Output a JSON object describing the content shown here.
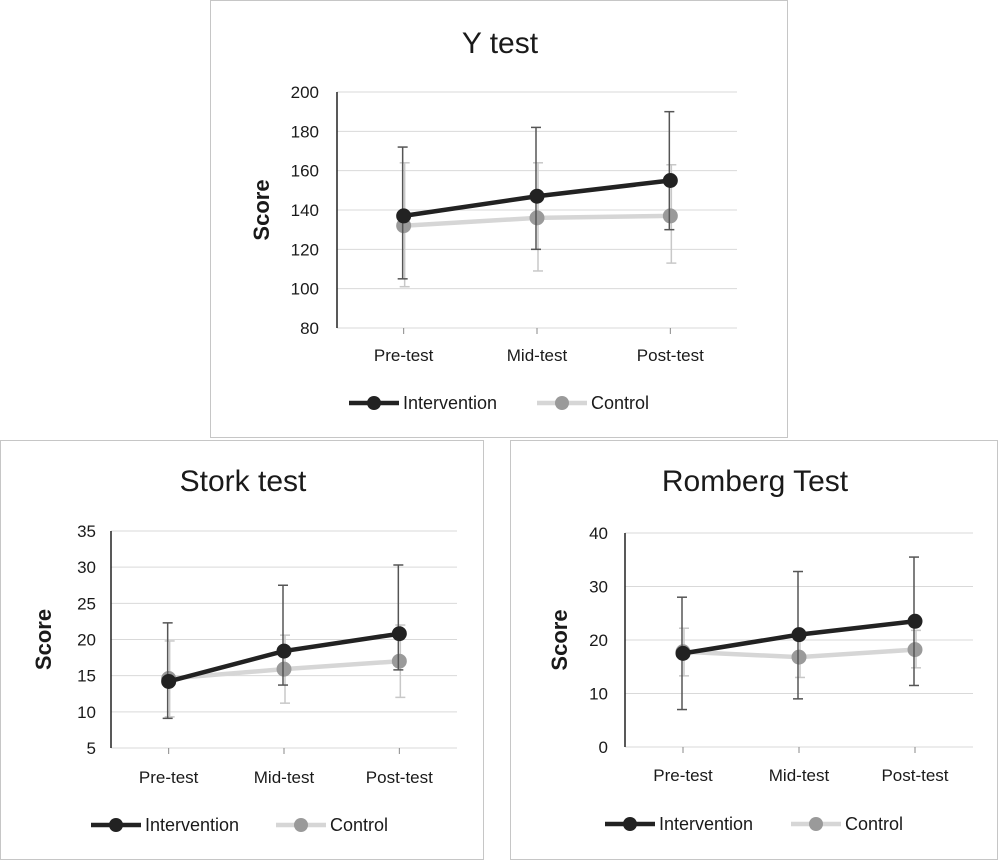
{
  "colors": {
    "intervention": "#222222",
    "control": "#d6d6d6",
    "control_marker": "#9a9a9a",
    "grid": "#d9d9d9",
    "axis": "#222222",
    "error_intervention": "#555555",
    "error_control": "#c8c8c8"
  },
  "chart_data": [
    {
      "type": "line",
      "title": "Y test",
      "ylabel": "Score",
      "xlabel": "",
      "categories": [
        "Pre-test",
        "Mid-test",
        "Post-test"
      ],
      "ylim": [
        80,
        200
      ],
      "yticks": [
        "80",
        "100",
        "120",
        "140",
        "160",
        "180",
        "200"
      ],
      "grid": true,
      "legend": "bottom",
      "series": [
        {
          "name": "Intervention",
          "values": [
            137,
            147,
            155
          ],
          "err_low": [
            105,
            120,
            130
          ],
          "err_high": [
            172,
            182,
            190
          ]
        },
        {
          "name": "Control",
          "values": [
            132,
            136,
            137
          ],
          "err_low": [
            101,
            109,
            113
          ],
          "err_high": [
            164,
            164,
            163
          ]
        }
      ]
    },
    {
      "type": "line",
      "title": "Stork test",
      "ylabel": "Score",
      "xlabel": "",
      "categories": [
        "Pre-test",
        "Mid-test",
        "Post-test"
      ],
      "ylim": [
        5,
        35
      ],
      "yticks": [
        "5",
        "10",
        "15",
        "20",
        "25",
        "30",
        "35"
      ],
      "grid": true,
      "legend": "bottom",
      "series": [
        {
          "name": "Intervention",
          "values": [
            14.2,
            18.4,
            20.8
          ],
          "err_low": [
            9.1,
            13.7,
            15.8
          ],
          "err_high": [
            22.3,
            27.5,
            30.3
          ]
        },
        {
          "name": "Control",
          "values": [
            14.6,
            15.9,
            17.0
          ],
          "err_low": [
            9.3,
            11.2,
            12.0
          ],
          "err_high": [
            19.8,
            20.6,
            22.0
          ]
        }
      ]
    },
    {
      "type": "line",
      "title": "Romberg Test",
      "ylabel": "Score",
      "xlabel": "",
      "categories": [
        "Pre-test",
        "Mid-test",
        "Post-test"
      ],
      "ylim": [
        0,
        40
      ],
      "yticks": [
        "0",
        "10",
        "20",
        "30",
        "40"
      ],
      "grid": true,
      "legend": "bottom",
      "series": [
        {
          "name": "Intervention",
          "values": [
            17.5,
            21.0,
            23.5
          ],
          "err_low": [
            7.0,
            9.0,
            11.5
          ],
          "err_high": [
            28.0,
            32.8,
            35.5
          ]
        },
        {
          "name": "Control",
          "values": [
            17.8,
            16.8,
            18.2
          ],
          "err_low": [
            13.3,
            13.0,
            14.8
          ],
          "err_high": [
            22.2,
            20.5,
            21.8
          ]
        }
      ]
    }
  ]
}
